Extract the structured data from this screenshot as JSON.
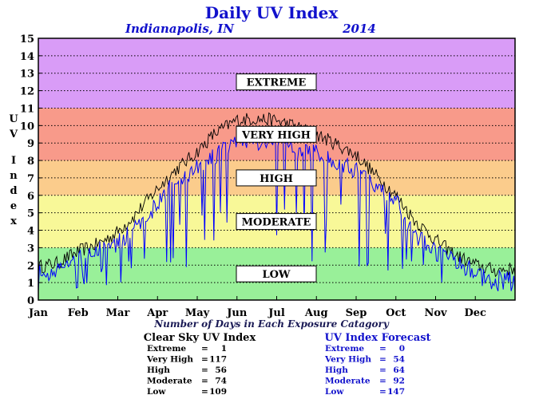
{
  "header": {
    "title": "Daily UV Index",
    "location": "Indianapolis, IN",
    "year": "2014"
  },
  "axis": {
    "ylabel_letters": [
      "U",
      "V",
      "I",
      "n",
      "d",
      "e",
      "x"
    ],
    "yticks": [
      "0",
      "1",
      "2",
      "3",
      "4",
      "5",
      "6",
      "7",
      "8",
      "9",
      "10",
      "11",
      "12",
      "13",
      "14",
      "15"
    ],
    "months": [
      "Jan",
      "Feb",
      "Mar",
      "Apr",
      "May",
      "Jun",
      "Jul",
      "Aug",
      "Sep",
      "Oct",
      "Nov",
      "Dec"
    ]
  },
  "caption": "Number of Days in Each Exposure Catagory",
  "colors": {
    "low": "#99f099",
    "moderate": "#f8f898",
    "high": "#fbcc8c",
    "very_high": "#f89a8a",
    "extreme": "#d99cf7",
    "clear_sky_line": "#000000",
    "forecast_line": "#0000ff",
    "forecast_text": "#1111cc"
  },
  "chart_data": {
    "type": "line",
    "title": "Daily UV Index",
    "ylabel": "UV Index",
    "ylim": [
      0,
      15
    ],
    "x_range_days": [
      1,
      365
    ],
    "bands": [
      {
        "name": "LOW",
        "from": 0,
        "to": 3
      },
      {
        "name": "MODERATE",
        "from": 3,
        "to": 6
      },
      {
        "name": "HIGH",
        "from": 6,
        "to": 8
      },
      {
        "name": "VERY HIGH",
        "from": 8,
        "to": 11
      },
      {
        "name": "EXTREME",
        "from": 11,
        "to": 15
      }
    ],
    "grid": true,
    "series": [
      {
        "name": "Clear Sky UV Index",
        "x": [
          1,
          15,
          32,
          46,
          60,
          74,
          91,
          105,
          121,
          135,
          152,
          166,
          182,
          196,
          213,
          227,
          244,
          258,
          274,
          288,
          305,
          319,
          335,
          349,
          365
        ],
        "values": [
          1.9,
          2.1,
          2.8,
          3.2,
          3.8,
          4.8,
          6.3,
          7.4,
          8.4,
          9.5,
          10.3,
          10.4,
          10.3,
          10.0,
          9.5,
          9.0,
          8.3,
          7.2,
          6.0,
          4.6,
          3.4,
          2.6,
          2.0,
          1.7,
          1.8
        ]
      },
      {
        "name": "UV Index Forecast",
        "x": [
          1,
          15,
          32,
          46,
          60,
          74,
          91,
          105,
          121,
          135,
          152,
          166,
          182,
          196,
          213,
          227,
          244,
          258,
          274,
          288,
          305,
          319,
          335,
          349,
          365
        ],
        "values": [
          1.8,
          1.6,
          2.6,
          2.9,
          3.2,
          4.0,
          5.4,
          6.8,
          7.5,
          8.2,
          9.2,
          9.0,
          9.4,
          8.6,
          8.4,
          8.0,
          7.4,
          6.4,
          5.7,
          3.8,
          2.7,
          2.2,
          1.6,
          1.3,
          1.2
        ]
      }
    ]
  },
  "stats": {
    "clear_sky": {
      "title": "Clear Sky UV Index",
      "rows": [
        {
          "label": "Extreme",
          "sep": "=",
          "value": "1"
        },
        {
          "label": "Very High",
          "sep": "=",
          "value": "117"
        },
        {
          "label": "High",
          "sep": "=",
          "value": "56"
        },
        {
          "label": "Moderate",
          "sep": "=",
          "value": "74"
        },
        {
          "label": "Low",
          "sep": "=",
          "value": "109"
        }
      ]
    },
    "forecast": {
      "title": "UV Index Forecast",
      "rows": [
        {
          "label": "Extreme",
          "sep": "=",
          "value": "0"
        },
        {
          "label": "Very High",
          "sep": "=",
          "value": "54"
        },
        {
          "label": "High",
          "sep": "=",
          "value": "64"
        },
        {
          "label": "Moderate",
          "sep": "=",
          "value": "92"
        },
        {
          "label": "Low",
          "sep": "=",
          "value": "147"
        }
      ]
    }
  }
}
